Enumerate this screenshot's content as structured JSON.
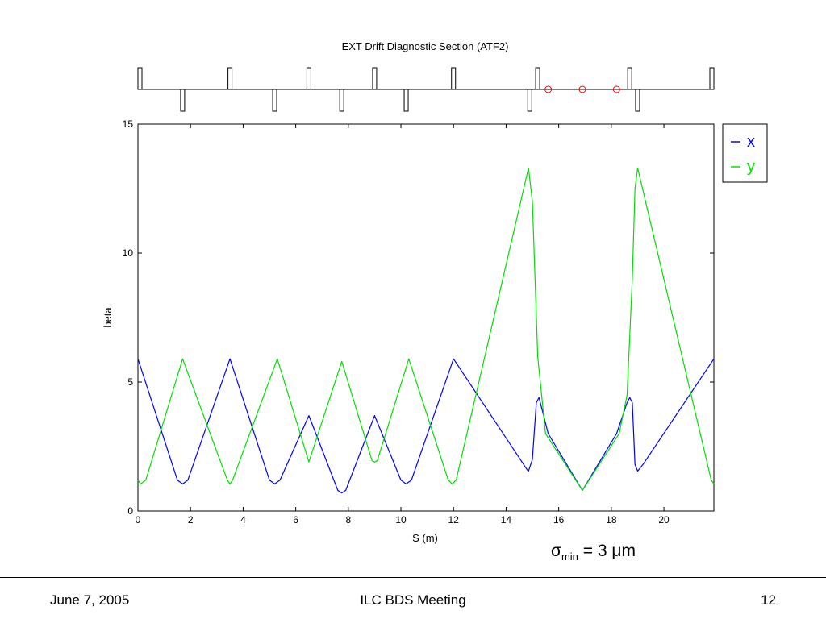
{
  "footer": {
    "date": "June 7, 2005",
    "title": "ILC BDS Meeting",
    "page": "12"
  },
  "annotation": {
    "sigma_symbol": "σ",
    "sigma_subscript": "min",
    "sigma_value": " = 3 μm"
  },
  "chart_data": {
    "type": "line",
    "title": "EXT Drift Diagnostic Section (ATF2)",
    "xlabel": "S (m)",
    "ylabel": "beta",
    "xlim": [
      0,
      21.9
    ],
    "ylim": [
      0,
      15
    ],
    "xticks": [
      0,
      2,
      4,
      6,
      8,
      10,
      12,
      14,
      16,
      18,
      20
    ],
    "yticks": [
      0,
      5,
      10,
      15
    ],
    "grid": false,
    "legend_position": "outside-right-top",
    "series": [
      {
        "name": "x",
        "color": "#0000ff",
        "points": [
          [
            0,
            5.9
          ],
          [
            1.5,
            1.2
          ],
          [
            1.7,
            1.05
          ],
          [
            1.9,
            1.2
          ],
          [
            3.5,
            5.9
          ],
          [
            5.0,
            1.2
          ],
          [
            5.2,
            1.05
          ],
          [
            5.4,
            1.2
          ],
          [
            6.5,
            3.7
          ],
          [
            7.6,
            0.8
          ],
          [
            7.75,
            0.7
          ],
          [
            7.9,
            0.8
          ],
          [
            9.0,
            3.7
          ],
          [
            10.0,
            1.2
          ],
          [
            10.2,
            1.05
          ],
          [
            10.4,
            1.2
          ],
          [
            12.0,
            5.9
          ],
          [
            14.8,
            1.6
          ],
          [
            14.85,
            1.55
          ],
          [
            15.0,
            2.0
          ],
          [
            15.15,
            4.2
          ],
          [
            15.25,
            4.4
          ],
          [
            15.4,
            3.8
          ],
          [
            15.6,
            3.0
          ],
          [
            16.9,
            0.8
          ],
          [
            18.2,
            3.0
          ],
          [
            18.6,
            4.2
          ],
          [
            18.7,
            4.4
          ],
          [
            18.8,
            4.2
          ],
          [
            18.9,
            1.8
          ],
          [
            19.0,
            1.55
          ],
          [
            19.2,
            1.8
          ],
          [
            21.9,
            5.9
          ]
        ]
      },
      {
        "name": "y",
        "color": "#00e000",
        "points": [
          [
            0,
            1.2
          ],
          [
            0.1,
            1.05
          ],
          [
            0.3,
            1.2
          ],
          [
            1.7,
            5.9
          ],
          [
            3.4,
            1.2
          ],
          [
            3.5,
            1.05
          ],
          [
            3.6,
            1.2
          ],
          [
            5.3,
            5.9
          ],
          [
            6.5,
            1.9
          ],
          [
            7.75,
            5.8
          ],
          [
            8.9,
            1.95
          ],
          [
            9.0,
            1.9
          ],
          [
            9.1,
            1.95
          ],
          [
            10.3,
            5.9
          ],
          [
            11.8,
            1.2
          ],
          [
            11.95,
            1.05
          ],
          [
            12.1,
            1.2
          ],
          [
            14.85,
            13.3
          ],
          [
            15.0,
            12.0
          ],
          [
            15.2,
            6.0
          ],
          [
            15.5,
            3.0
          ],
          [
            16.9,
            0.8
          ],
          [
            18.3,
            3.0
          ],
          [
            18.6,
            4.5
          ],
          [
            18.8,
            9.0
          ],
          [
            18.9,
            12.5
          ],
          [
            19.0,
            13.3
          ],
          [
            21.8,
            1.2
          ],
          [
            21.9,
            1.05
          ]
        ]
      }
    ],
    "lattice": {
      "upper_elements_s": [
        0,
        3.5,
        6.5,
        9.0,
        12.0,
        15.2,
        18.7,
        21.9
      ],
      "lower_elements_s": [
        1.7,
        5.2,
        7.75,
        10.2,
        14.9,
        19.0
      ],
      "wire_scanners_s": [
        15.6,
        16.9,
        18.2
      ],
      "wire_scanner_color": "#ff0000"
    }
  }
}
